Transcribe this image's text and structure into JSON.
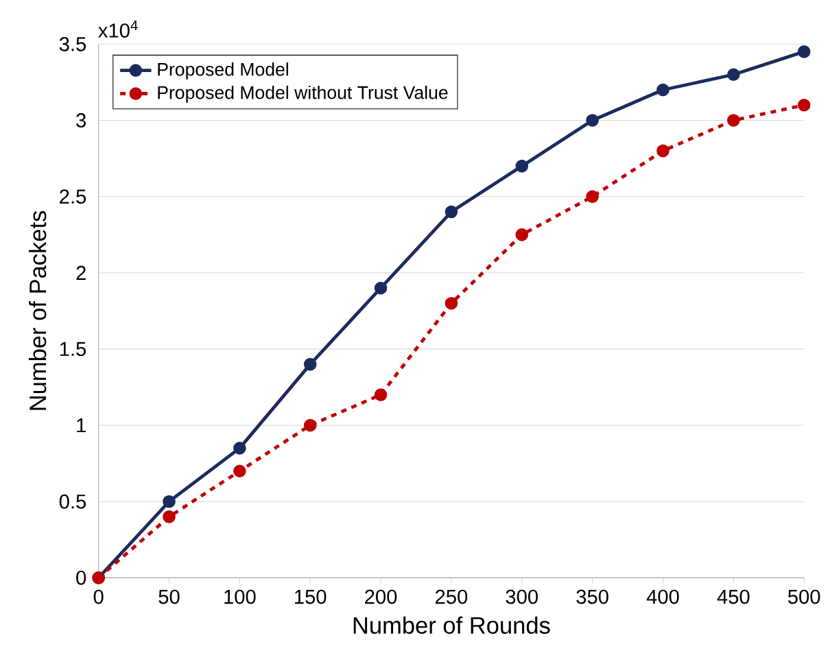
{
  "chart_data": {
    "type": "line",
    "xlabel": "Number of Rounds",
    "ylabel": "Number of Packets",
    "annotations": [
      "x10$^{4}$"
    ],
    "x": [
      0,
      50,
      100,
      150,
      200,
      250,
      300,
      350,
      400,
      450,
      500
    ],
    "series": [
      {
        "name": "Proposed Model",
        "color": "#1c2b5e",
        "line_style": "solid",
        "values": [
          0,
          0.5,
          0.85,
          1.4,
          1.9,
          2.4,
          2.7,
          3.0,
          3.2,
          3.3,
          3.45
        ]
      },
      {
        "name": "Proposed Model without Trust Value",
        "color": "#c00000",
        "line_style": "dashed",
        "values": [
          0,
          0.4,
          0.7,
          1.0,
          1.2,
          1.8,
          2.25,
          2.5,
          2.8,
          3.0,
          3.1
        ]
      }
    ],
    "xlim": [
      0,
      500
    ],
    "xticks": [
      0,
      50,
      100,
      150,
      200,
      250,
      300,
      350,
      400,
      450,
      500
    ],
    "ylim": [
      0,
      3.5
    ],
    "yticks": [
      0,
      0.5,
      1,
      1.5,
      2,
      2.5,
      3,
      3.5
    ],
    "grid": "y",
    "legend": "top left",
    "marker": "circle"
  }
}
